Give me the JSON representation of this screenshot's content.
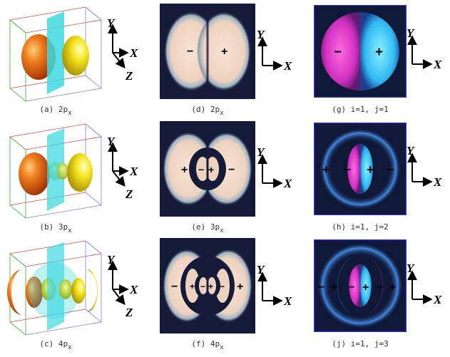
{
  "axes": {
    "y": "Y",
    "x": "X",
    "z": "Z"
  },
  "signs": {
    "minus": "−",
    "plus": "+"
  },
  "captions": {
    "a": {
      "pre": "(a) 2p",
      "sub": "x"
    },
    "b": {
      "pre": "(b) 3p",
      "sub": "x"
    },
    "c": {
      "pre": "(c) 4p",
      "sub": "x"
    },
    "d": {
      "pre": "(d) 2p",
      "sub": "x"
    },
    "e": {
      "pre": "(e) 3p",
      "sub": "x"
    },
    "f": {
      "pre": "(f) 4p",
      "sub": "x"
    },
    "g": {
      "text": "(g) i=1, j=1"
    },
    "h": {
      "text": "(h) i=1, j=2"
    },
    "j": {
      "text": "(j) i=1, j=3"
    }
  },
  "colors": {
    "orange_lobe": "#e8681a",
    "yellow_lobe": "#f2e21a",
    "plane": "#40d8e0",
    "cloud": "#f2d9c8",
    "dark_bg": "#141a38",
    "magenta": "#e040c8",
    "cyan": "#38c8f0",
    "frame_blue": "#3030d0"
  }
}
